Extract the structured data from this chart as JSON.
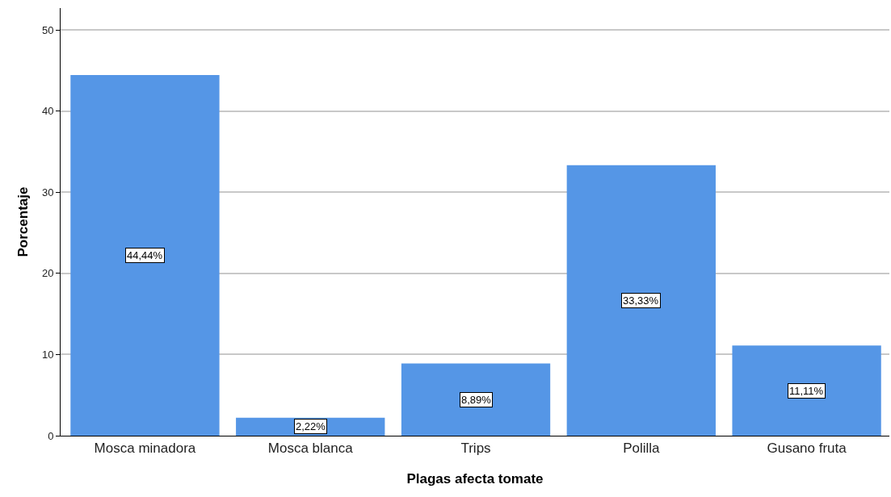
{
  "chart_data": {
    "type": "bar",
    "xlabel": "Plagas afecta tomate",
    "ylabel": "Porcentaje",
    "categories": [
      "Mosca minadora",
      "Mosca blanca",
      "Trips",
      "Polilla",
      "Gusano fruta"
    ],
    "values": [
      44.44,
      2.22,
      8.89,
      33.33,
      11.11
    ],
    "value_labels": [
      "44,44%",
      "2,22%",
      "8,89%",
      "33,33%",
      "11,11%"
    ],
    "color": "#5596e6",
    "ylim": [
      0,
      52.7
    ],
    "yticks": [
      0,
      10,
      20,
      30,
      40,
      50
    ],
    "grid": "y"
  }
}
